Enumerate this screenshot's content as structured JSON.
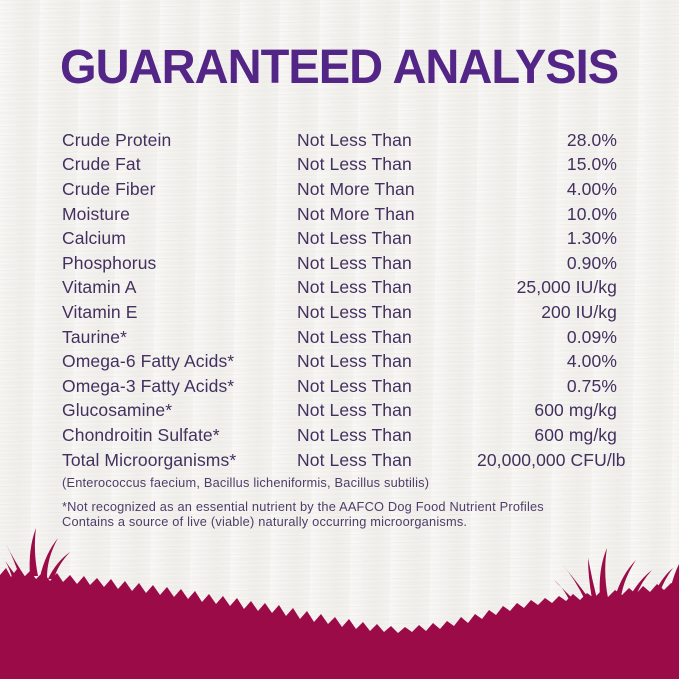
{
  "title": "GUARANTEED ANALYSIS",
  "table": {
    "rows": [
      {
        "nutrient": "Crude Protein",
        "qualifier": "Not Less Than",
        "value": "28.0%"
      },
      {
        "nutrient": "Crude Fat",
        "qualifier": "Not Less Than",
        "value": "15.0%"
      },
      {
        "nutrient": "Crude Fiber",
        "qualifier": "Not More Than",
        "value": "4.00%"
      },
      {
        "nutrient": "Moisture",
        "qualifier": "Not More Than",
        "value": "10.0%"
      },
      {
        "nutrient": "Calcium",
        "qualifier": "Not Less Than",
        "value": "1.30%"
      },
      {
        "nutrient": "Phosphorus",
        "qualifier": "Not Less Than",
        "value": "0.90%"
      },
      {
        "nutrient": "Vitamin A",
        "qualifier": "Not Less Than",
        "value": "25,000 IU/kg"
      },
      {
        "nutrient": "Vitamin E",
        "qualifier": "Not Less Than",
        "value": "200 IU/kg"
      },
      {
        "nutrient": "Taurine*",
        "qualifier": "Not Less Than",
        "value": "0.09%"
      },
      {
        "nutrient": "Omega-6 Fatty Acids*",
        "qualifier": "Not Less Than",
        "value": "4.00%"
      },
      {
        "nutrient": "Omega-3 Fatty Acids*",
        "qualifier": "Not Less Than",
        "value": "0.75%"
      },
      {
        "nutrient": "Glucosamine*",
        "qualifier": "Not Less Than",
        "value": "600 mg/kg"
      },
      {
        "nutrient": "Chondroitin Sulfate*",
        "qualifier": "Not Less Than",
        "value": "600 mg/kg"
      },
      {
        "nutrient": "Total Microorganisms*",
        "qualifier": "Not Less Than",
        "value": "20,000,000 CFU/lb"
      }
    ]
  },
  "footnotes": {
    "organisms": "(Enterococcus faecium, Bacillus licheniformis, Bacillus subtilis)",
    "aafco": "*Not recognized as an essential nutrient by the AAFCO Dog Food Nutrient Profiles",
    "live": "Contains a source of live (viable) naturally occurring microorganisms."
  },
  "colors": {
    "title": "#522586",
    "body_text": "#43305f",
    "footnote_text": "#4e3d68",
    "grass": "#9b0b48",
    "background": "#f5f4f1"
  }
}
